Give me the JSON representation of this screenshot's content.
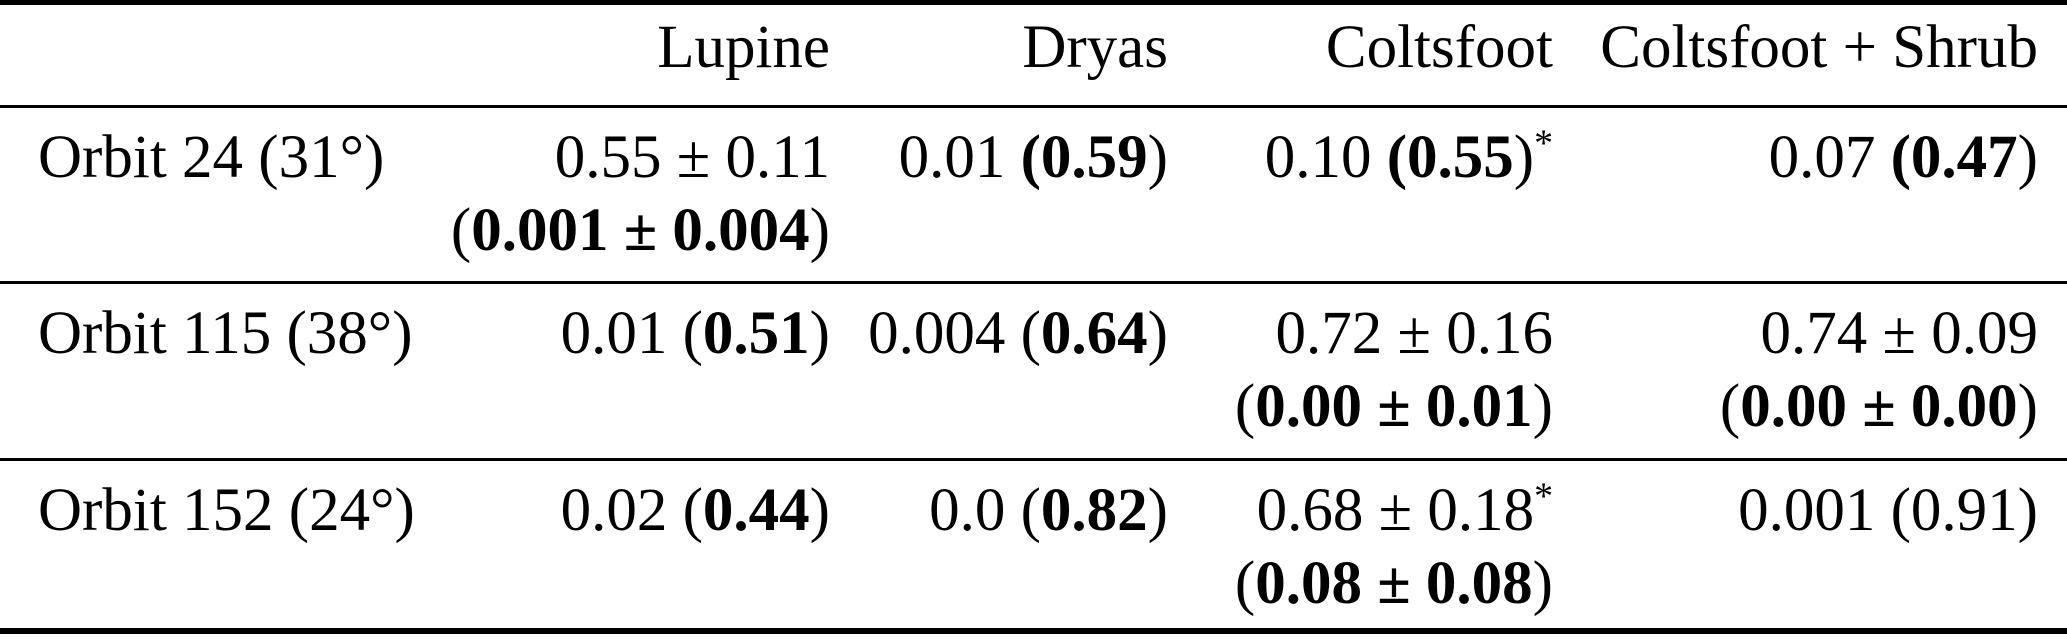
{
  "page": {
    "background": "#ffffff",
    "text_color": "#000000",
    "rule_color": "#000000"
  },
  "table": {
    "header": [
      "",
      "Lupine",
      "Dryas",
      "Coltsfoot",
      "Coltsfoot + Shrub"
    ],
    "rows": [
      {
        "label": "Orbit 24 (31°)",
        "cells": [
          {
            "lines": [
              [
                {
                  "t": "0.55 ± 0.11"
                }
              ],
              [
                {
                  "t": "("
                },
                {
                  "t": "0.001 ± 0.004",
                  "b": true
                },
                {
                  "t": ")"
                }
              ]
            ]
          },
          {
            "lines": [
              [
                {
                  "t": "0.01 "
                },
                {
                  "t": "(0.59",
                  "b": true
                },
                {
                  "t": ")"
                }
              ]
            ]
          },
          {
            "lines": [
              [
                {
                  "t": "0.10 "
                },
                {
                  "t": "(0.55",
                  "b": true
                },
                {
                  "t": ")"
                },
                {
                  "t": "*",
                  "sup": true
                }
              ]
            ]
          },
          {
            "lines": [
              [
                {
                  "t": "0.07 "
                },
                {
                  "t": "(0.47",
                  "b": true
                },
                {
                  "t": ")"
                }
              ]
            ]
          }
        ]
      },
      {
        "label": "Orbit 115 (38°)",
        "cells": [
          {
            "lines": [
              [
                {
                  "t": "0.01 ("
                },
                {
                  "t": "0.51",
                  "b": true
                },
                {
                  "t": ")"
                }
              ]
            ]
          },
          {
            "lines": [
              [
                {
                  "t": "0.004 ("
                },
                {
                  "t": "0.64",
                  "b": true
                },
                {
                  "t": ")"
                }
              ]
            ]
          },
          {
            "lines": [
              [
                {
                  "t": "0.72 ± 0.16"
                }
              ],
              [
                {
                  "t": "("
                },
                {
                  "t": "0.00 ± 0.01",
                  "b": true
                },
                {
                  "t": ")"
                }
              ]
            ]
          },
          {
            "lines": [
              [
                {
                  "t": "0.74 ± 0.09"
                }
              ],
              [
                {
                  "t": "("
                },
                {
                  "t": "0.00 ± 0.00",
                  "b": true
                },
                {
                  "t": ")"
                }
              ]
            ]
          }
        ]
      },
      {
        "label": "Orbit 152 (24°)",
        "cells": [
          {
            "lines": [
              [
                {
                  "t": "0.02 ("
                },
                {
                  "t": "0.44",
                  "b": true
                },
                {
                  "t": ")"
                }
              ]
            ]
          },
          {
            "lines": [
              [
                {
                  "t": "0.0 ("
                },
                {
                  "t": "0.82",
                  "b": true
                },
                {
                  "t": ")"
                }
              ]
            ]
          },
          {
            "lines": [
              [
                {
                  "t": "0.68 ± 0.18"
                },
                {
                  "t": "*",
                  "sup": true
                }
              ],
              [
                {
                  "t": "("
                },
                {
                  "t": "0.08 ± 0.08",
                  "b": true
                },
                {
                  "t": ")"
                }
              ]
            ]
          },
          {
            "lines": [
              [
                {
                  "t": "0.001 (0.91)"
                }
              ]
            ]
          }
        ]
      }
    ]
  }
}
